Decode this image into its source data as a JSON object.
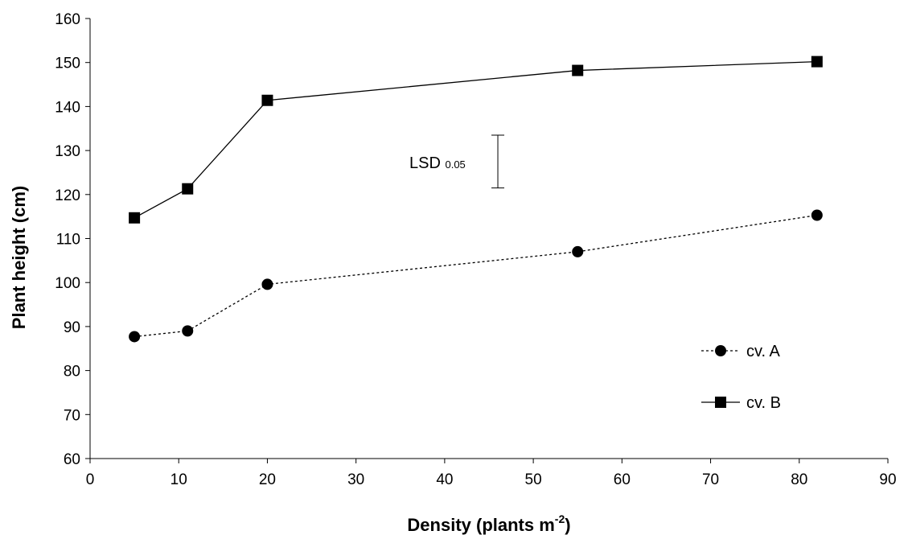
{
  "chart_data": {
    "type": "line",
    "title": "",
    "xlabel": "Density (plants m",
    "xlabel_sup": "-2",
    "xlabel_suffix": ")",
    "ylabel": "Plant height (cm)",
    "xlim": [
      0,
      90
    ],
    "ylim": [
      60,
      160
    ],
    "xticks": [
      0,
      10,
      20,
      30,
      40,
      50,
      60,
      70,
      80,
      90
    ],
    "yticks": [
      60,
      70,
      80,
      90,
      100,
      110,
      120,
      130,
      140,
      150,
      160
    ],
    "grid": false,
    "legend_position": "bottom-right",
    "series": [
      {
        "name": "cv. A",
        "marker": "circle",
        "line_style": "dotted",
        "color": "#000000",
        "x": [
          5,
          11,
          20,
          55,
          82
        ],
        "y": [
          87.7,
          89.0,
          99.6,
          107.0,
          115.3
        ]
      },
      {
        "name": "cv. B",
        "marker": "square",
        "line_style": "solid",
        "color": "#000000",
        "x": [
          5,
          11,
          20,
          55,
          82
        ],
        "y": [
          114.7,
          121.3,
          141.4,
          148.2,
          150.2
        ]
      }
    ],
    "annotation": {
      "label": "LSD",
      "sub": "0.05",
      "x": 46,
      "y_low": 121.5,
      "y_high": 133.5
    }
  }
}
